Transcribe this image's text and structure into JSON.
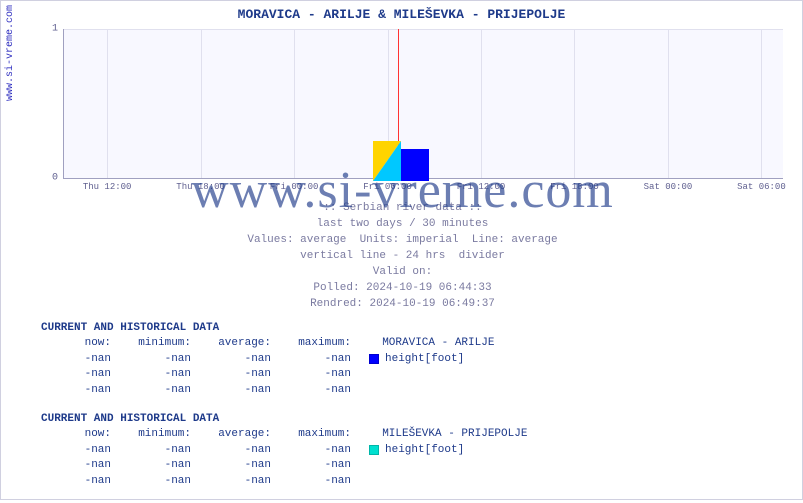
{
  "title": "MORAVICA -  ARILJE &  MILEŠEVKA -  PRIJEPOLJE",
  "ylabel_left": "www.si-vreme.com",
  "watermark": "www.si-vreme.com",
  "chart": {
    "type": "line",
    "background_color": "#f8f8ff",
    "grid_color": "#e0e0ee",
    "axis_color": "#a0a0c0",
    "divider_color": "#ff3333",
    "ylim": [
      0,
      1
    ],
    "yticks": [
      0,
      1
    ],
    "xticks": [
      "Thu 12:00",
      "Thu 18:00",
      "Fri 00:00",
      "Fri 06:00",
      "Fri 12:00",
      "Fri 18:00",
      "Sat 00:00",
      "Sat 06:00"
    ],
    "divider24_index": 3,
    "title_fontsize": 13,
    "tick_fontsize": 10,
    "series": []
  },
  "meta": {
    "line1": ":: Serbian river data ::",
    "line2": "last two days / 30 minutes",
    "line3": "Values: average  Units: imperial  Line: average",
    "line4": "vertical line - 24 hrs  divider",
    "line5": "Valid on:",
    "line6": "Polled: 2024-10-19 06:44:33",
    "line7": "Rendred: 2024-10-19 06:49:37"
  },
  "tables": [
    {
      "title": "CURRENT AND HISTORICAL DATA",
      "series_name": "MORAVICA -  ARILJE",
      "series_var": "height[foot]",
      "swatch_color": "#0000ff",
      "headers": [
        "now:",
        "minimum:",
        "average:",
        "maximum:"
      ],
      "rows": [
        [
          "-nan",
          "-nan",
          "-nan",
          "-nan"
        ],
        [
          "-nan",
          "-nan",
          "-nan",
          "-nan"
        ],
        [
          "-nan",
          "-nan",
          "-nan",
          "-nan"
        ]
      ]
    },
    {
      "title": "CURRENT AND HISTORICAL DATA",
      "series_name": "MILEŠEVKA -  PRIJEPOLJE",
      "series_var": "height[foot]",
      "swatch_color": "#00e0d0",
      "headers": [
        "now:",
        "minimum:",
        "average:",
        "maximum:"
      ],
      "rows": [
        [
          "-nan",
          "-nan",
          "-nan",
          "-nan"
        ],
        [
          "-nan",
          "-nan",
          "-nan",
          "-nan"
        ],
        [
          "-nan",
          "-nan",
          "-nan",
          "-nan"
        ]
      ]
    }
  ],
  "colors": {
    "title": "#1e3a8a",
    "meta_text": "#7a7aa0",
    "table_text": "#1e3a8a"
  }
}
